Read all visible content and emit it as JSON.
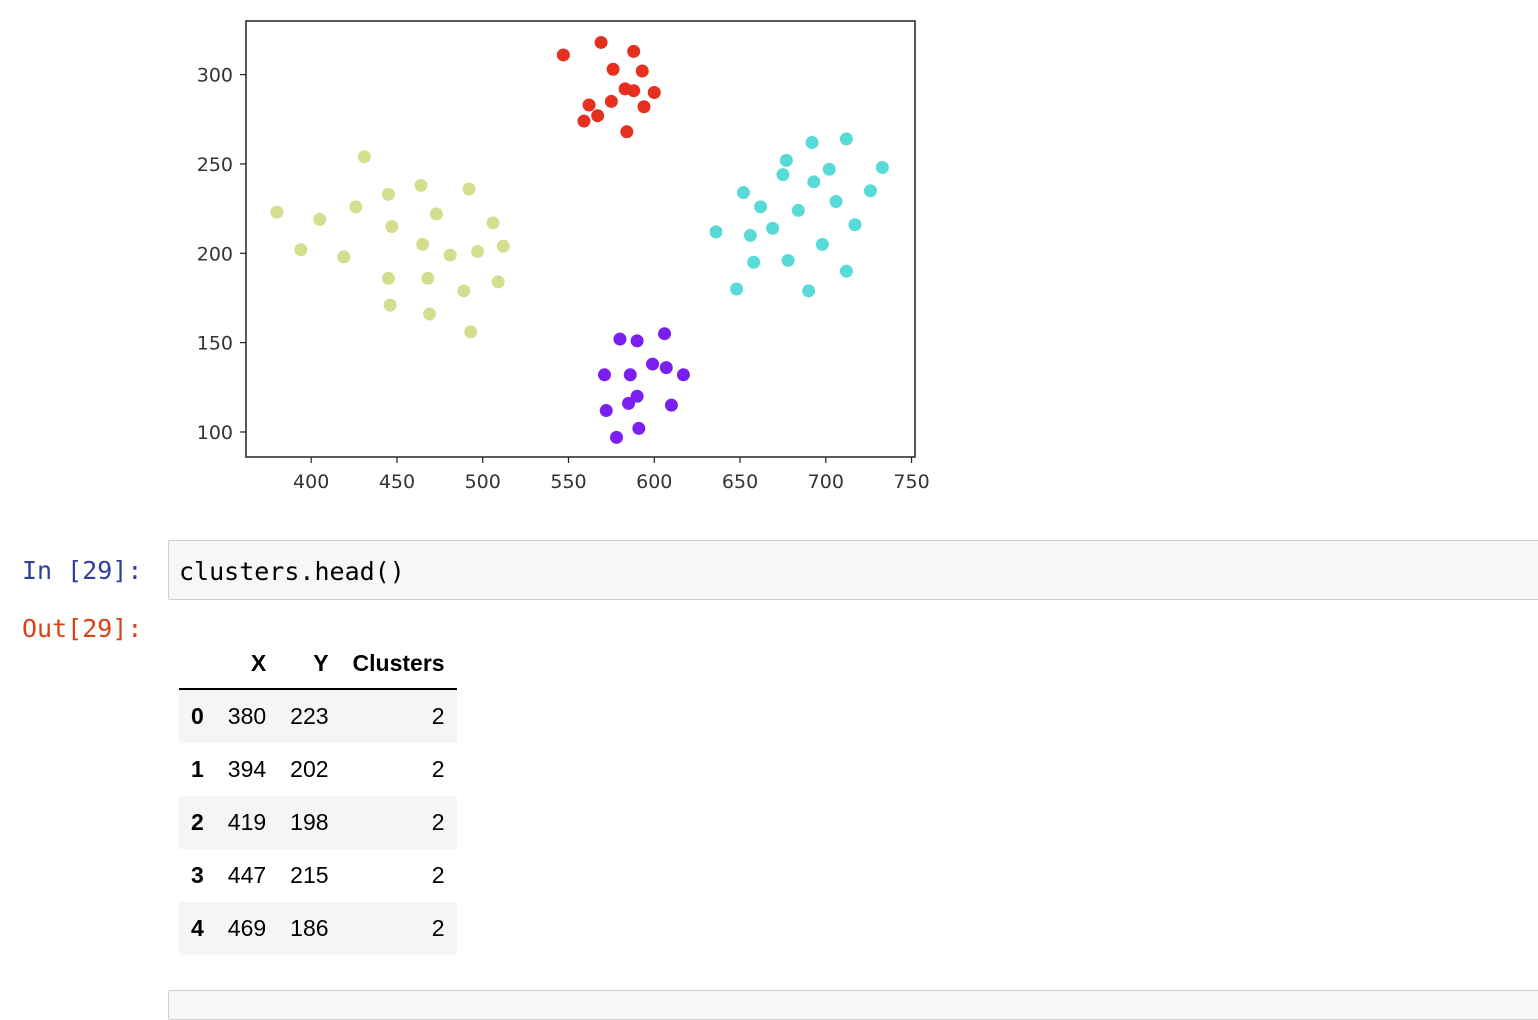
{
  "chart_data": {
    "type": "scatter",
    "xlim": [
      362,
      752
    ],
    "ylim": [
      86,
      330
    ],
    "xticks": [
      400,
      450,
      500,
      550,
      600,
      650,
      700,
      750
    ],
    "yticks": [
      100,
      150,
      200,
      250,
      300
    ],
    "grid": false,
    "series": [
      {
        "color": "#d5dd8e",
        "points": [
          [
            380,
            223
          ],
          [
            394,
            202
          ],
          [
            405,
            219
          ],
          [
            419,
            198
          ],
          [
            426,
            226
          ],
          [
            431,
            254
          ],
          [
            445,
            233
          ],
          [
            447,
            215
          ],
          [
            445,
            186
          ],
          [
            446,
            171
          ],
          [
            464,
            238
          ],
          [
            465,
            205
          ],
          [
            468,
            186
          ],
          [
            469,
            166
          ],
          [
            473,
            222
          ],
          [
            481,
            199
          ],
          [
            489,
            179
          ],
          [
            492,
            236
          ],
          [
            493,
            156
          ],
          [
            497,
            201
          ],
          [
            506,
            217
          ],
          [
            509,
            184
          ],
          [
            512,
            204
          ]
        ]
      },
      {
        "color": "#e6301f",
        "points": [
          [
            547,
            311
          ],
          [
            569,
            318
          ],
          [
            588,
            313
          ],
          [
            576,
            303
          ],
          [
            593,
            302
          ],
          [
            583,
            292
          ],
          [
            600,
            290
          ],
          [
            588,
            291
          ],
          [
            562,
            283
          ],
          [
            575,
            285
          ],
          [
            594,
            282
          ],
          [
            559,
            274
          ],
          [
            567,
            277
          ],
          [
            584,
            268
          ]
        ]
      },
      {
        "color": "#58dbd8",
        "points": [
          [
            636,
            212
          ],
          [
            648,
            180
          ],
          [
            652,
            234
          ],
          [
            656,
            210
          ],
          [
            658,
            195
          ],
          [
            662,
            226
          ],
          [
            669,
            214
          ],
          [
            675,
            244
          ],
          [
            677,
            252
          ],
          [
            678,
            196
          ],
          [
            684,
            224
          ],
          [
            690,
            179
          ],
          [
            692,
            262
          ],
          [
            693,
            240
          ],
          [
            698,
            205
          ],
          [
            702,
            247
          ],
          [
            706,
            229
          ],
          [
            712,
            190
          ],
          [
            712,
            264
          ],
          [
            717,
            216
          ],
          [
            726,
            235
          ],
          [
            733,
            248
          ]
        ]
      },
      {
        "color": "#7a1fef",
        "points": [
          [
            580,
            152
          ],
          [
            590,
            151
          ],
          [
            606,
            155
          ],
          [
            571,
            132
          ],
          [
            586,
            132
          ],
          [
            599,
            138
          ],
          [
            607,
            136
          ],
          [
            617,
            132
          ],
          [
            572,
            112
          ],
          [
            585,
            116
          ],
          [
            590,
            120
          ],
          [
            591,
            102
          ],
          [
            610,
            115
          ],
          [
            578,
            97
          ]
        ]
      }
    ]
  },
  "notebook": {
    "in_prompt": "In [29]:",
    "out_prompt": "Out[29]:",
    "code": "clusters.head()"
  },
  "dataframe": {
    "columns": [
      "",
      "X",
      "Y",
      "Clusters"
    ],
    "rows": [
      {
        "index": "0",
        "X": "380",
        "Y": "223",
        "Clusters": "2"
      },
      {
        "index": "1",
        "X": "394",
        "Y": "202",
        "Clusters": "2"
      },
      {
        "index": "2",
        "X": "419",
        "Y": "198",
        "Clusters": "2"
      },
      {
        "index": "3",
        "X": "447",
        "Y": "215",
        "Clusters": "2"
      },
      {
        "index": "4",
        "X": "469",
        "Y": "186",
        "Clusters": "2"
      }
    ]
  }
}
